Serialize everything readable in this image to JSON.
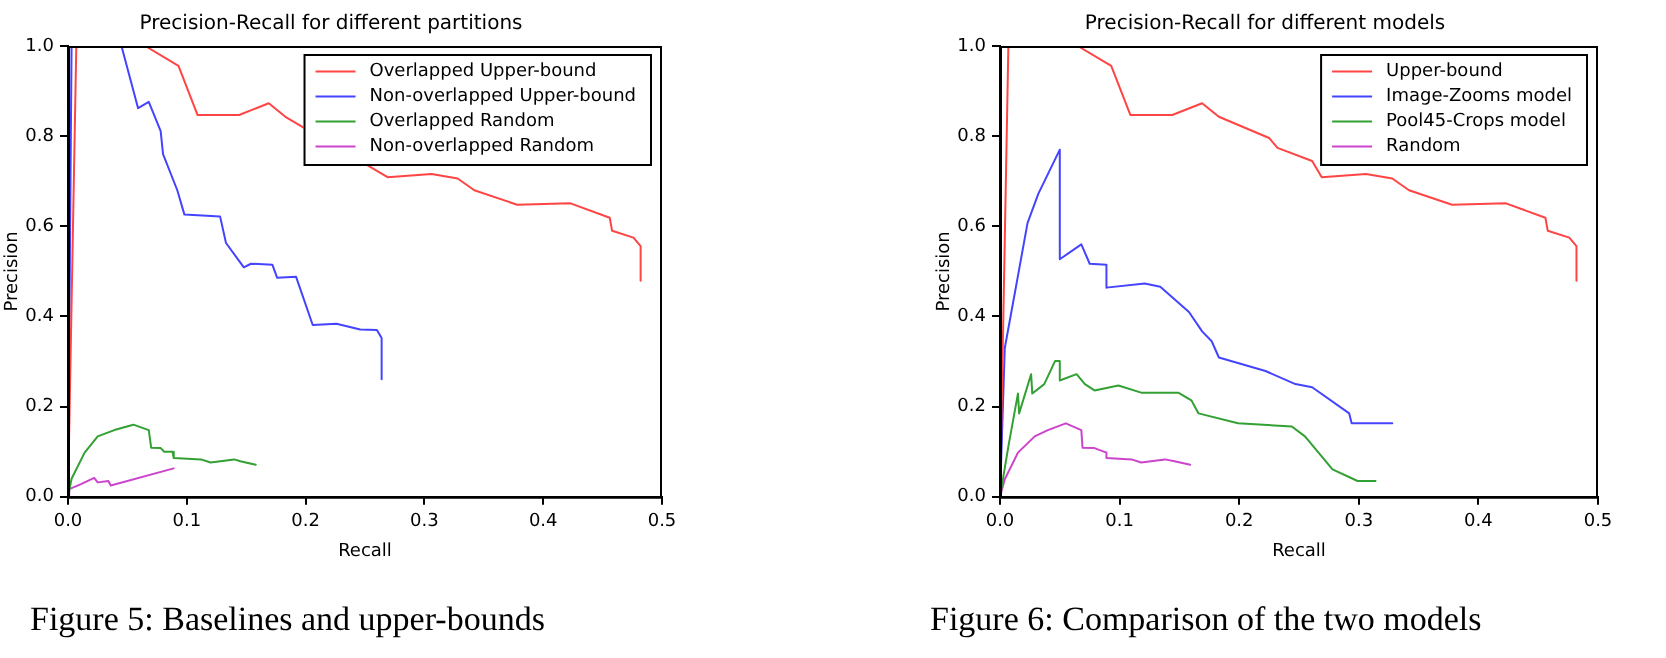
{
  "chart_data": [
    {
      "type": "line",
      "title": "Precision-Recall for different partitions",
      "xlabel": "Recall",
      "ylabel": "Precision",
      "legend": "top right",
      "marker": "none",
      "grid": false,
      "xlim": [
        0,
        0.5
      ],
      "xticks": [
        {
          "value": 0,
          "label": "0.0"
        },
        {
          "value": 0.1,
          "label": "0.1"
        },
        {
          "value": 0.2,
          "label": "0.2"
        },
        {
          "value": 0.3,
          "label": "0.3"
        },
        {
          "value": 0.4,
          "label": "0.4"
        },
        {
          "value": 0.5,
          "label": "0.5"
        }
      ],
      "ylim": [
        0,
        1
      ],
      "yticks": [
        {
          "value": 0,
          "label": "0.0"
        },
        {
          "value": 0.2,
          "label": "0.2"
        },
        {
          "value": 0.4,
          "label": "0.4"
        },
        {
          "value": 0.6,
          "label": "0.6"
        },
        {
          "value": 0.8,
          "label": "0.8"
        },
        {
          "value": 1,
          "label": "1.0"
        }
      ],
      "annotations": [
        "Figure 5: Baselines and upper-bounds"
      ],
      "series": [
        {
          "name": "Overlapped Upper-bound",
          "color": "#ff4444",
          "x": [
            0,
            0.007,
            0.065,
            0.093,
            0.109,
            0.144,
            0.169,
            0.183,
            0.225,
            0.232,
            0.261,
            0.269,
            0.306,
            0.328,
            0.342,
            0.378,
            0.423,
            0.456,
            0.458,
            0.476,
            0.482,
            0.482
          ],
          "values": [
            0,
            1,
            1,
            0.956,
            0.847,
            0.847,
            0.873,
            0.843,
            null,
            null,
            null,
            0.709,
            0.716,
            0.706,
            0.68,
            0.648,
            0.651,
            0.619,
            0.59,
            0.575,
            0.556,
            0.479
          ]
        },
        {
          "name": "Non-overlapped Upper-bound",
          "color": "#4444ff",
          "x": [
            0,
            0.003,
            0.045,
            0.059,
            0.068,
            0.078,
            0.08,
            0.092,
            0.098,
            0.128,
            0.133,
            0.148,
            0.154,
            0.172,
            0.176,
            0.192,
            0.206,
            0.226,
            0.246,
            0.26,
            0.264,
            0.264
          ],
          "values": [
            0,
            1,
            1,
            0.862,
            0.876,
            0.811,
            0.76,
            0.68,
            0.626,
            0.622,
            0.563,
            0.509,
            0.517,
            0.515,
            0.486,
            0.488,
            0.381,
            0.384,
            0.371,
            0.37,
            0.352,
            0.261
          ]
        },
        {
          "name": "Overlapped Random",
          "color": "#33a033",
          "x": [
            0,
            0.003,
            0.014,
            0.025,
            0.039,
            0.055,
            0.068,
            0.07,
            0.078,
            0.081,
            0.088,
            0.089,
            0.112,
            0.12,
            0.14,
            0.145,
            0.158
          ],
          "values": [
            0,
            0.04,
            0.098,
            0.134,
            0.148,
            0.16,
            0.148,
            0.109,
            0.108,
            0.1,
            0.1,
            0.086,
            0.083,
            0.076,
            0.083,
            0.079,
            0.071
          ]
        },
        {
          "name": "Non-overlapped Random",
          "color": "#cc44cc",
          "x": [
            0,
            0.001,
            0.011,
            0.022,
            0.025,
            0.034,
            0.036,
            0.089
          ],
          "values": [
            0,
            0.017,
            0.028,
            0.042,
            0.032,
            0.035,
            0.025,
            0.063
          ]
        }
      ]
    },
    {
      "type": "line",
      "title": "Precision-Recall for different models",
      "xlabel": "Recall",
      "ylabel": "Precision",
      "legend": "top right",
      "marker": "none",
      "grid": false,
      "xlim": [
        0,
        0.5
      ],
      "xticks": [
        {
          "value": 0,
          "label": "0.0"
        },
        {
          "value": 0.1,
          "label": "0.1"
        },
        {
          "value": 0.2,
          "label": "0.2"
        },
        {
          "value": 0.3,
          "label": "0.3"
        },
        {
          "value": 0.4,
          "label": "0.4"
        },
        {
          "value": 0.5,
          "label": "0.5"
        }
      ],
      "ylim": [
        0,
        1
      ],
      "yticks": [
        {
          "value": 0,
          "label": "0.0"
        },
        {
          "value": 0.2,
          "label": "0.2"
        },
        {
          "value": 0.4,
          "label": "0.4"
        },
        {
          "value": 0.6,
          "label": "0.6"
        },
        {
          "value": 0.8,
          "label": "0.8"
        },
        {
          "value": 1,
          "label": "1.0"
        }
      ],
      "annotations": [
        "Figure 6: Comparison of the two models"
      ],
      "series": [
        {
          "name": "Upper-bound",
          "color": "#ff4444",
          "x": [
            0,
            0.007,
            0.065,
            0.093,
            0.109,
            0.144,
            0.169,
            0.183,
            0.225,
            0.232,
            0.261,
            0.269,
            0.306,
            0.328,
            0.342,
            0.378,
            0.423,
            0.456,
            0.458,
            0.476,
            0.482,
            0.482
          ],
          "values": [
            0,
            1,
            1,
            0.956,
            0.847,
            0.847,
            0.873,
            0.843,
            0.796,
            0.774,
            0.745,
            0.709,
            0.716,
            0.706,
            0.68,
            0.648,
            0.651,
            0.619,
            0.59,
            0.575,
            0.556,
            0.479
          ]
        },
        {
          "name": "Image-Zooms model",
          "color": "#4444ff",
          "x": [
            0,
            0.004,
            0.015,
            0.023,
            0.032,
            0.05,
            0.05,
            0.068,
            0.075,
            0.089,
            0.089,
            0.121,
            0.134,
            0.158,
            0.169,
            0.177,
            0.183,
            0.222,
            0.247,
            0.261,
            0.292,
            0.294,
            0.328
          ],
          "values": [
            0,
            0.33,
            0.49,
            0.607,
            0.672,
            0.77,
            0.527,
            0.56,
            0.517,
            0.515,
            0.464,
            0.473,
            0.466,
            0.41,
            0.367,
            0.345,
            0.309,
            0.279,
            0.25,
            0.243,
            0.185,
            0.163,
            0.163
          ]
        },
        {
          "name": "Pool45-Crops model",
          "color": "#33a033",
          "x": [
            0,
            0.007,
            0.015,
            0.016,
            0.026,
            0.027,
            0.037,
            0.046,
            0.05,
            0.05,
            0.064,
            0.071,
            0.079,
            0.099,
            0.118,
            0.149,
            0.16,
            0.166,
            0.199,
            0.244,
            0.255,
            0.278,
            0.299,
            0.314
          ],
          "values": [
            0,
            0.112,
            0.229,
            0.185,
            0.272,
            0.229,
            0.25,
            0.301,
            0.301,
            0.258,
            0.272,
            0.25,
            0.236,
            0.247,
            0.231,
            0.231,
            0.214,
            0.185,
            0.163,
            0.156,
            0.134,
            0.061,
            0.035,
            0.035
          ]
        },
        {
          "name": "Random",
          "color": "#cc44cc",
          "x": [
            0,
            0.004,
            0.015,
            0.029,
            0.04,
            0.055,
            0.068,
            0.069,
            0.079,
            0.089,
            0.089,
            0.11,
            0.118,
            0.138,
            0.146,
            0.159
          ],
          "values": [
            0,
            0.039,
            0.098,
            0.134,
            0.148,
            0.163,
            0.148,
            0.109,
            0.108,
            0.098,
            0.086,
            0.083,
            0.076,
            0.083,
            0.079,
            0.071
          ]
        }
      ]
    }
  ]
}
